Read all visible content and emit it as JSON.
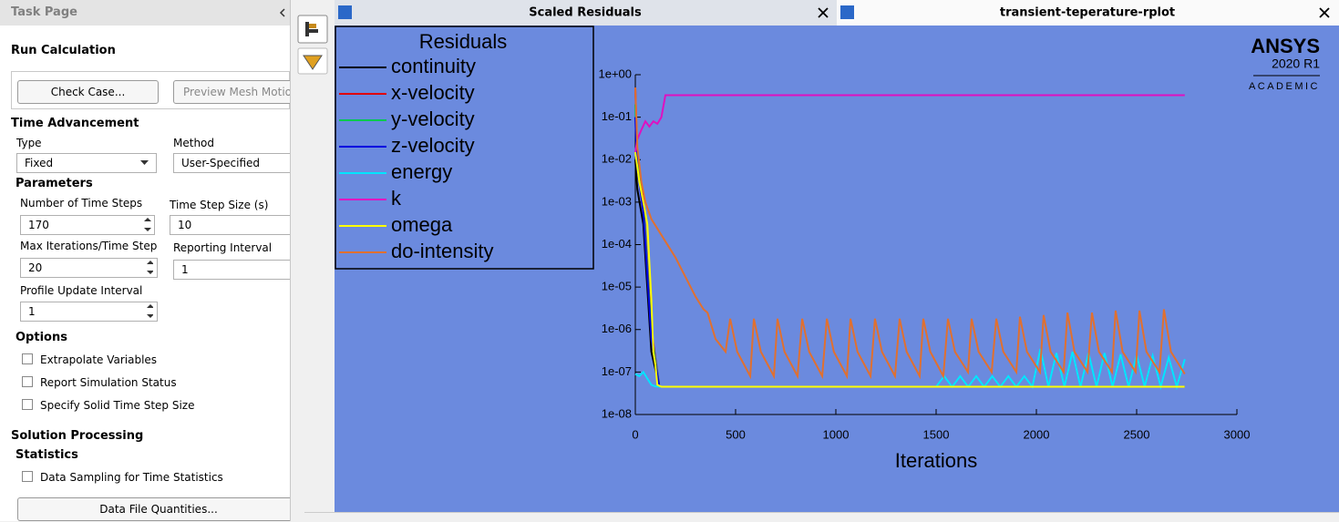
{
  "task_page": {
    "title": "Task Page",
    "run_calculation": {
      "heading": "Run Calculation",
      "buttons": [
        "Check Case...",
        "Preview Mesh Motion"
      ]
    },
    "time_advancement": {
      "heading": "Time Advancement",
      "type": {
        "label": "Type",
        "value": "Fixed"
      },
      "method": {
        "label": "Method",
        "value": "User-Specified"
      }
    },
    "parameters": {
      "heading": "Parameters",
      "fields": [
        {
          "label": "Number of Time Steps",
          "value": 170
        },
        {
          "label": "Time Step Size (s)",
          "value": 10
        },
        {
          "label": "Max Iterations/Time Step",
          "value": 20
        },
        {
          "label": "Reporting Interval",
          "value": 1
        },
        {
          "label": "Profile Update Interval",
          "value": 1
        }
      ]
    },
    "options": {
      "heading": "Options",
      "checkboxes": [
        "Extrapolate Variables",
        "Report Simulation Status",
        "Specify Solid Time Step Size"
      ]
    },
    "solution_processing": {
      "heading": "Solution Processing",
      "statistics": {
        "heading": "Statistics",
        "checkbox": "Data Sampling for Time Statistics"
      },
      "button": "Data File Quantities..."
    }
  },
  "tabs": [
    "Scaled Residuals",
    "transient-teperature-rplot"
  ],
  "branding": {
    "name": "ANSYS",
    "version": "2020 R1",
    "edition": "ACADEMIC"
  },
  "chart_data": {
    "type": "line",
    "legend_title": "Residuals",
    "xlabel": "Iterations",
    "legend_loc": "upper left",
    "background": "#6b8ade",
    "yscale": "log",
    "xlim": [
      0,
      3000
    ],
    "xticks": [
      0,
      500,
      1000,
      1500,
      2000,
      2500,
      3000
    ],
    "ylim": [
      1e-08,
      1
    ],
    "yticks": [
      {
        "value": 1e-08,
        "label": "1e-08"
      },
      {
        "value": 1e-07,
        "label": "1e-07"
      },
      {
        "value": 1e-06,
        "label": "1e-06"
      },
      {
        "value": 1e-05,
        "label": "1e-05"
      },
      {
        "value": 0.0001,
        "label": "1e-04"
      },
      {
        "value": 0.001,
        "label": "1e-03"
      },
      {
        "value": 0.01,
        "label": "1e-02"
      },
      {
        "value": 0.1,
        "label": "1e-01"
      },
      {
        "value": 1,
        "label": "1e+00"
      }
    ],
    "series": [
      {
        "name": "continuity",
        "color": "#000000",
        "x": [
          0,
          10,
          40,
          80,
          120,
          2740
        ],
        "values": [
          0.01,
          0.002,
          0.0003,
          3e-07,
          4.5e-08,
          4.5e-08
        ]
      },
      {
        "name": "x-velocity",
        "color": "#e00000",
        "x": [
          0,
          10,
          40,
          80,
          120,
          2740
        ],
        "values": [
          0.5,
          0.01,
          0.001,
          1e-06,
          4.5e-08,
          4.5e-08
        ]
      },
      {
        "name": "y-velocity",
        "color": "#00c850",
        "x": [
          0,
          10,
          40,
          80,
          120,
          2740
        ],
        "values": [
          0.2,
          0.008,
          0.0008,
          8e-07,
          4.5e-08,
          4.5e-08
        ]
      },
      {
        "name": "z-velocity",
        "color": "#0000e0",
        "x": [
          0,
          10,
          40,
          80,
          120,
          2740
        ],
        "values": [
          0.1,
          0.006,
          0.0006,
          6e-07,
          4.5e-08,
          4.5e-08
        ]
      },
      {
        "name": "energy",
        "color": "#00e5ff",
        "x": [
          0,
          20,
          40,
          60,
          80,
          100,
          120,
          1500,
          1540,
          1580,
          1620,
          1660,
          1700,
          1740,
          1780,
          1820,
          1860,
          1900,
          1940,
          1980,
          2020,
          2060,
          2100,
          2140,
          2180,
          2220,
          2260,
          2300,
          2340,
          2380,
          2420,
          2460,
          2500,
          2540,
          2580,
          2620,
          2660,
          2700,
          2740
        ],
        "values": [
          9e-08,
          8e-08,
          1e-07,
          7e-08,
          5e-08,
          4.6e-08,
          4.5e-08,
          4.5e-08,
          8e-08,
          4.5e-08,
          8e-08,
          4.5e-08,
          8e-08,
          4.5e-08,
          8e-08,
          4.5e-08,
          8e-08,
          4.5e-08,
          8e-08,
          4.5e-08,
          3.5e-07,
          4.5e-08,
          2.8e-07,
          4.5e-08,
          3e-07,
          4.5e-08,
          2.8e-07,
          4.5e-08,
          2.8e-07,
          4.5e-08,
          2.6e-07,
          4.5e-08,
          2.5e-07,
          4.5e-08,
          2.4e-07,
          4.5e-08,
          2.2e-07,
          4.5e-08,
          2e-07
        ]
      },
      {
        "name": "k",
        "color": "#e010c0",
        "x": [
          0,
          10,
          30,
          50,
          70,
          90,
          110,
          130,
          150,
          2740
        ],
        "values": [
          0.015,
          0.03,
          0.05,
          0.08,
          0.06,
          0.08,
          0.07,
          0.1,
          0.33,
          0.33
        ]
      },
      {
        "name": "omega",
        "color": "#ffff00",
        "x": [
          0,
          20,
          40,
          60,
          80,
          90,
          100,
          110,
          130,
          2740
        ],
        "values": [
          0.015,
          0.003,
          0.001,
          0.0003,
          5e-06,
          3e-07,
          1.5e-07,
          5e-08,
          4.5e-08,
          4.5e-08
        ]
      },
      {
        "name": "do-intensity",
        "color": "#e07030",
        "x": [
          0,
          10,
          30,
          50,
          80,
          120,
          200,
          300,
          340,
          360,
          400,
          450,
          473,
          508,
          573,
          591,
          626,
          691,
          709,
          744,
          809,
          832,
          867,
          932,
          955,
          990,
          1055,
          1073,
          1108,
          1173,
          1195,
          1230,
          1295,
          1318,
          1353,
          1418,
          1436,
          1471,
          1536,
          1559,
          1594,
          1659,
          1677,
          1712,
          1777,
          1800,
          1835,
          1900,
          1918,
          1953,
          2018,
          2036,
          2071,
          2136,
          2155,
          2190,
          2255,
          2277,
          2312,
          2377,
          2395,
          2430,
          2495,
          2514,
          2549,
          2614,
          2636,
          2671,
          2740
        ],
        "values": [
          0.5,
          0.02,
          0.003,
          0.001,
          0.0004,
          0.0002,
          5e-05,
          6e-06,
          3e-06,
          2.5e-06,
          6e-07,
          3e-07,
          1.8e-06,
          3e-07,
          8e-08,
          1.8e-06,
          3e-07,
          8e-08,
          1.8e-06,
          3e-07,
          8e-08,
          1.8e-06,
          3e-07,
          8e-08,
          1.8e-06,
          3e-07,
          8e-08,
          1.8e-06,
          3e-07,
          8e-08,
          1.8e-06,
          3e-07,
          8e-08,
          1.8e-06,
          3e-07,
          8e-08,
          1.8e-06,
          3e-07,
          8e-08,
          1.8e-06,
          3e-07,
          1e-07,
          1.8e-06,
          3e-07,
          1e-07,
          1.8e-06,
          3e-07,
          1e-07,
          2e-06,
          3e-07,
          1e-07,
          2.2e-06,
          3e-07,
          1e-07,
          2.5e-06,
          3e-07,
          1e-07,
          2.5e-06,
          3e-07,
          1e-07,
          2.8e-06,
          3e-07,
          1e-07,
          2.8e-06,
          3e-07,
          1e-07,
          3e-06,
          3e-07,
          9e-08
        ]
      }
    ]
  }
}
